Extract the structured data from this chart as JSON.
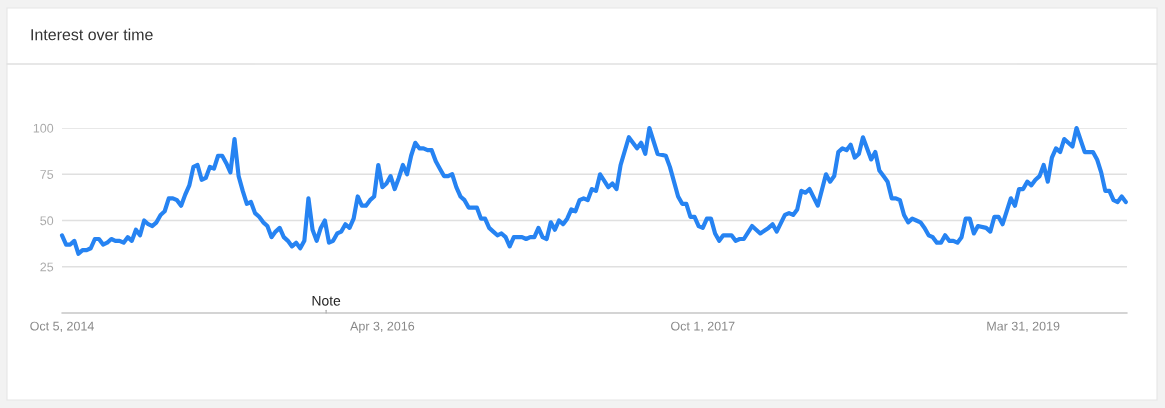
{
  "chart_data": {
    "type": "line",
    "title": "Interest over time",
    "x": [
      "2014-10-05",
      "2014-10-12",
      "2014-10-19",
      "2014-10-26",
      "2014-11-02",
      "2014-11-09",
      "2014-11-16",
      "2014-11-23",
      "2014-11-30",
      "2014-12-07",
      "2014-12-14",
      "2014-12-21",
      "2014-12-28",
      "2015-01-04",
      "2015-01-11",
      "2015-01-18",
      "2015-01-25",
      "2015-02-01",
      "2015-02-08",
      "2015-02-15",
      "2015-02-22",
      "2015-03-01",
      "2015-03-08",
      "2015-03-15",
      "2015-03-22",
      "2015-03-29",
      "2015-04-05",
      "2015-04-12",
      "2015-04-19",
      "2015-04-26",
      "2015-05-03",
      "2015-05-10",
      "2015-05-17",
      "2015-05-24",
      "2015-05-31",
      "2015-06-07",
      "2015-06-14",
      "2015-06-21",
      "2015-06-28",
      "2015-07-05",
      "2015-07-12",
      "2015-07-19",
      "2015-07-26",
      "2015-08-02",
      "2015-08-09",
      "2015-08-16",
      "2015-08-23",
      "2015-08-30",
      "2015-09-06",
      "2015-09-13",
      "2015-09-20",
      "2015-09-27",
      "2015-10-04",
      "2015-10-11",
      "2015-10-18",
      "2015-10-25",
      "2015-11-01",
      "2015-11-08",
      "2015-11-15",
      "2015-11-22",
      "2015-11-29",
      "2015-12-06",
      "2015-12-13",
      "2015-12-20",
      "2015-12-27",
      "2016-01-03",
      "2016-01-10",
      "2016-01-17",
      "2016-01-24",
      "2016-01-31",
      "2016-02-07",
      "2016-02-14",
      "2016-02-21",
      "2016-02-28",
      "2016-03-06",
      "2016-03-13",
      "2016-03-20",
      "2016-03-27",
      "2016-04-03",
      "2016-04-10",
      "2016-04-17",
      "2016-04-24",
      "2016-05-01",
      "2016-05-08",
      "2016-05-15",
      "2016-05-22",
      "2016-05-29",
      "2016-06-05",
      "2016-06-12",
      "2016-06-19",
      "2016-06-26",
      "2016-07-03",
      "2016-07-10",
      "2016-07-17",
      "2016-07-24",
      "2016-07-31",
      "2016-08-07",
      "2016-08-14",
      "2016-08-21",
      "2016-08-28",
      "2016-09-04",
      "2016-09-11",
      "2016-09-18",
      "2016-09-25",
      "2016-10-02",
      "2016-10-09",
      "2016-10-16",
      "2016-10-23",
      "2016-10-30",
      "2016-11-06",
      "2016-11-13",
      "2016-11-20",
      "2016-11-27",
      "2016-12-04",
      "2016-12-11",
      "2016-12-18",
      "2016-12-25",
      "2017-01-01",
      "2017-01-08",
      "2017-01-15",
      "2017-01-22",
      "2017-01-29",
      "2017-02-05",
      "2017-02-12",
      "2017-02-19",
      "2017-02-26",
      "2017-03-05",
      "2017-03-12",
      "2017-03-19",
      "2017-03-26",
      "2017-04-02",
      "2017-04-09",
      "2017-04-23",
      "2017-04-30",
      "2017-05-07",
      "2017-05-14",
      "2017-05-28",
      "2017-06-11",
      "2017-06-18",
      "2017-06-25",
      "2017-07-02",
      "2017-07-16",
      "2017-07-30",
      "2017-08-06",
      "2017-08-20",
      "2017-08-27",
      "2017-09-03",
      "2017-09-10",
      "2017-09-17",
      "2017-09-24",
      "2017-10-01",
      "2017-10-08",
      "2017-10-15",
      "2017-10-22",
      "2017-10-29",
      "2017-11-05",
      "2017-11-19",
      "2017-11-26",
      "2017-12-03",
      "2017-12-10",
      "2017-12-24",
      "2018-01-07",
      "2018-01-21",
      "2018-01-28",
      "2018-02-04",
      "2018-02-18",
      "2018-02-25",
      "2018-03-04",
      "2018-03-11",
      "2018-03-18",
      "2018-03-25",
      "2018-04-01",
      "2018-04-15",
      "2018-04-29",
      "2018-05-06",
      "2018-05-13",
      "2018-05-20",
      "2018-05-27",
      "2018-06-03",
      "2018-06-10",
      "2018-06-17",
      "2018-06-24",
      "2018-07-01",
      "2018-07-15",
      "2018-07-22",
      "2018-07-29",
      "2018-08-05",
      "2018-08-12",
      "2018-08-19",
      "2018-08-26",
      "2018-09-02",
      "2018-09-09",
      "2018-09-16",
      "2018-09-23",
      "2018-09-30",
      "2018-10-07",
      "2018-10-14",
      "2018-10-21",
      "2018-10-28",
      "2018-11-04",
      "2018-11-11",
      "2018-11-18",
      "2018-11-25",
      "2018-12-02",
      "2018-12-09",
      "2018-12-16",
      "2018-12-23",
      "2018-12-30",
      "2019-01-06",
      "2019-01-13",
      "2019-01-27",
      "2019-02-03",
      "2019-02-10",
      "2019-02-17",
      "2019-02-24",
      "2019-03-10",
      "2019-03-17",
      "2019-03-24",
      "2019-03-31",
      "2019-04-07",
      "2019-04-14",
      "2019-04-21",
      "2019-04-28",
      "2019-05-05",
      "2019-05-12",
      "2019-05-19",
      "2019-05-26",
      "2019-06-02",
      "2019-06-09",
      "2019-06-16",
      "2019-06-23",
      "2019-06-30",
      "2019-07-14",
      "2019-07-28",
      "2019-08-04",
      "2019-08-11",
      "2019-08-18",
      "2019-08-25",
      "2019-09-01",
      "2019-09-08",
      "2019-09-15",
      "2019-09-22"
    ],
    "series": [
      {
        "color": "#2683f2",
        "values": [
          42,
          37,
          37,
          39,
          32,
          34,
          34,
          35,
          40,
          40,
          37,
          38,
          40,
          39,
          39,
          38,
          41,
          39,
          45,
          42,
          50,
          48,
          47,
          49,
          53,
          55,
          62,
          62,
          61,
          58,
          64,
          69,
          79,
          80,
          72,
          73,
          79,
          78,
          85,
          85,
          81,
          76,
          94,
          74,
          66,
          59,
          60,
          54,
          52,
          49,
          47,
          41,
          44,
          46,
          41,
          39,
          36,
          38,
          35,
          39,
          62,
          45,
          39,
          46,
          50,
          38,
          39,
          43,
          44,
          48,
          46,
          51,
          63,
          58,
          58,
          61,
          63,
          80,
          68,
          70,
          74,
          67,
          73,
          80,
          75,
          85,
          92,
          89,
          89,
          88,
          88,
          82,
          78,
          74,
          74,
          75,
          68,
          63,
          61,
          57,
          57,
          57,
          51,
          51,
          46,
          44,
          42,
          43,
          41,
          36,
          41,
          41,
          41,
          40,
          41,
          41,
          46,
          41,
          40,
          49,
          45,
          50,
          48,
          51,
          56,
          55,
          61,
          62,
          61,
          67,
          66,
          75,
          68,
          70,
          67,
          80,
          95,
          89,
          92,
          86,
          100,
          86,
          85,
          79,
          63,
          59,
          59,
          52,
          52,
          47,
          46,
          51,
          51,
          43,
          39,
          42,
          42,
          39,
          40,
          40,
          47,
          43,
          46,
          48,
          44,
          53,
          54,
          53,
          56,
          66,
          65,
          67,
          58,
          75,
          71,
          74,
          87,
          89,
          88,
          91,
          84,
          86,
          95,
          83,
          87,
          77,
          74,
          71,
          62,
          62,
          61,
          53,
          49,
          51,
          50,
          49,
          46,
          42,
          41,
          38,
          38,
          42,
          39,
          39,
          38,
          41,
          51,
          51,
          43,
          47,
          46,
          44,
          52,
          52,
          48,
          62,
          58,
          67,
          67,
          71,
          69,
          72,
          74,
          80,
          71,
          84,
          89,
          87,
          94,
          92,
          90,
          100,
          87,
          87,
          83,
          76,
          66,
          66,
          61,
          60,
          63,
          60
        ]
      }
    ],
    "xlim": [
      "2014-10-05",
      "2019-09-24"
    ],
    "ylim": [
      0,
      100
    ],
    "yticks": [
      25,
      50,
      75,
      100
    ],
    "xticks": [
      {
        "value": "2014-10-05",
        "label": "Oct 5, 2014"
      },
      {
        "value": "2016-04-03",
        "label": "Apr 3, 2016"
      },
      {
        "value": "2017-10-01",
        "label": "Oct 1, 2017"
      },
      {
        "value": "2019-03-31",
        "label": "Mar 31, 2019"
      }
    ],
    "grid": "y",
    "line_style": "solid",
    "marker": "none",
    "annotations": [
      "Note"
    ]
  }
}
